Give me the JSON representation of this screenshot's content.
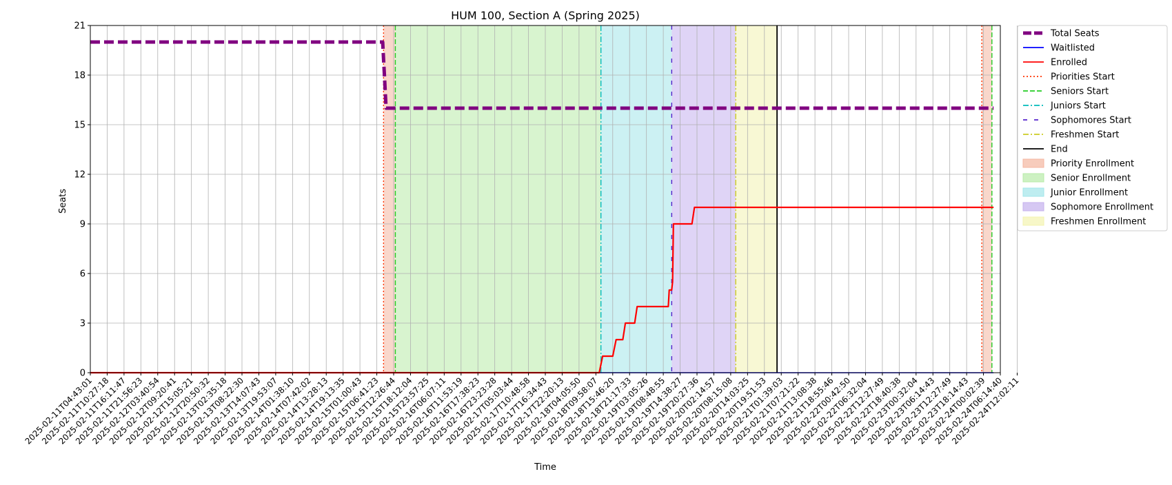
{
  "chart_data": {
    "type": "line",
    "title": "HUM 100, Section A (Spring 2025)",
    "xlabel": "Time",
    "ylabel": "Seats",
    "ylim": [
      0,
      21
    ],
    "y_ticks": [
      0,
      3,
      6,
      9,
      12,
      15,
      18,
      21
    ],
    "grid": true,
    "legend_position": "outside-right",
    "x_tick_labels": [
      "2025-02-11T04:43:01",
      "2025-02-11T10:27:18",
      "2025-02-11T16:11:47",
      "2025-02-11T21:56:23",
      "2025-02-12T03:40:54",
      "2025-02-12T09:20:41",
      "2025-02-12T15:05:21",
      "2025-02-12T20:50:32",
      "2025-02-13T02:35:18",
      "2025-02-13T08:22:30",
      "2025-02-13T14:07:43",
      "2025-02-13T19:53:07",
      "2025-02-14T01:38:10",
      "2025-02-14T07:42:02",
      "2025-02-14T13:28:13",
      "2025-02-14T19:13:35",
      "2025-02-15T01:00:43",
      "2025-02-15T06:41:23",
      "2025-02-15T12:26:44",
      "2025-02-15T18:12:04",
      "2025-02-15T23:57:25",
      "2025-02-16T06:07:11",
      "2025-02-16T11:53:19",
      "2025-02-16T17:38:23",
      "2025-02-16T23:23:28",
      "2025-02-17T05:03:44",
      "2025-02-17T10:48:58",
      "2025-02-17T16:34:43",
      "2025-02-17T22:20:13",
      "2025-02-18T04:05:50",
      "2025-02-18T09:58:07",
      "2025-02-18T15:46:20",
      "2025-02-18T21:17:33",
      "2025-02-19T03:05:26",
      "2025-02-19T08:48:55",
      "2025-02-19T14:38:27",
      "2025-02-19T20:27:36",
      "2025-02-20T02:14:57",
      "2025-02-20T08:15:08",
      "2025-02-20T14:03:25",
      "2025-02-20T19:51:53",
      "2025-02-21T01:39:03",
      "2025-02-21T07:21:22",
      "2025-02-21T13:08:38",
      "2025-02-21T18:55:46",
      "2025-02-22T00:42:50",
      "2025-02-22T06:32:04",
      "2025-02-22T12:27:49",
      "2025-02-22T18:40:38",
      "2025-02-23T00:32:04",
      "2025-02-23T06:14:43",
      "2025-02-23T12:27:49",
      "2025-02-23T18:14:43",
      "2025-02-24T00:02:39",
      "2025-02-24T06:14:40",
      "2025-02-24T12:02:11"
    ],
    "x_domain": [
      0,
      54
    ],
    "series": [
      {
        "name": "Total Seats",
        "color": "#800080",
        "style": "dashed-thick",
        "points": [
          [
            0,
            20
          ],
          [
            17.35,
            20
          ],
          [
            17.4,
            19
          ],
          [
            17.45,
            18
          ],
          [
            17.5,
            17
          ],
          [
            17.55,
            16
          ],
          [
            53.6,
            16
          ]
        ]
      },
      {
        "name": "Waitlisted",
        "color": "#0000ff",
        "style": "solid",
        "points": [
          [
            0,
            0
          ],
          [
            53.6,
            0
          ]
        ]
      },
      {
        "name": "Enrolled",
        "color": "#ff0000",
        "style": "solid",
        "points": [
          [
            0,
            0
          ],
          [
            30.2,
            0
          ],
          [
            30.4,
            1
          ],
          [
            31.0,
            1
          ],
          [
            31.2,
            2
          ],
          [
            31.6,
            2
          ],
          [
            31.75,
            3
          ],
          [
            32.3,
            3
          ],
          [
            32.45,
            4
          ],
          [
            34.3,
            4
          ],
          [
            34.35,
            5
          ],
          [
            34.5,
            5
          ],
          [
            34.55,
            5.5
          ],
          [
            34.6,
            9
          ],
          [
            35.7,
            9
          ],
          [
            35.85,
            10
          ],
          [
            53.6,
            10
          ]
        ]
      }
    ],
    "markers": [
      {
        "name": "Priorities Start",
        "x": 17.4,
        "color": "#ff3300",
        "style": "dotted"
      },
      {
        "name": "Seniors Start",
        "x": 18.1,
        "color": "#22cc22",
        "style": "dashed"
      },
      {
        "name": "Juniors Start",
        "x": 30.3,
        "color": "#00bbbb",
        "style": "dashdot"
      },
      {
        "name": "Sophomores Start",
        "x": 34.5,
        "color": "#5522cc",
        "style": "loosedash"
      },
      {
        "name": "Freshmen Start",
        "x": 38.3,
        "color": "#cccc22",
        "style": "dashdot"
      },
      {
        "name": "End",
        "x": 40.75,
        "color": "#000000",
        "style": "solid"
      },
      {
        "name": "",
        "x": 52.9,
        "color": "#ff3300",
        "style": "dotted"
      },
      {
        "name": "",
        "x": 53.5,
        "color": "#22cc22",
        "style": "dashed"
      }
    ],
    "spans": [
      {
        "name": "Priority Enrollment",
        "start": 17.4,
        "end": 18.1,
        "color": "#f4b6a0"
      },
      {
        "name": "Senior Enrollment",
        "start": 18.1,
        "end": 30.3,
        "color": "#b8eba8"
      },
      {
        "name": "Junior Enrollment",
        "start": 30.3,
        "end": 34.5,
        "color": "#a3e6ea"
      },
      {
        "name": "Sophomore Enrollment",
        "start": 34.5,
        "end": 38.3,
        "color": "#c5b0ee"
      },
      {
        "name": "Freshmen Enrollment",
        "start": 38.3,
        "end": 40.75,
        "color": "#f3f3b0"
      },
      {
        "name": "",
        "start": 52.9,
        "end": 53.5,
        "color": "#f4b6a0"
      }
    ],
    "legend": [
      {
        "label": "Total Seats",
        "kind": "line",
        "color": "#800080",
        "style": "dashed-thick"
      },
      {
        "label": "Waitlisted",
        "kind": "line",
        "color": "#0000ff",
        "style": "solid"
      },
      {
        "label": "Enrolled",
        "kind": "line",
        "color": "#ff0000",
        "style": "solid"
      },
      {
        "label": "Priorities Start",
        "kind": "line",
        "color": "#ff3300",
        "style": "dotted"
      },
      {
        "label": "Seniors Start",
        "kind": "line",
        "color": "#22cc22",
        "style": "dashed"
      },
      {
        "label": "Juniors Start",
        "kind": "line",
        "color": "#00bbbb",
        "style": "dashdot"
      },
      {
        "label": "Sophomores Start",
        "kind": "line",
        "color": "#5522cc",
        "style": "loosedash"
      },
      {
        "label": "Freshmen Start",
        "kind": "line",
        "color": "#cccc22",
        "style": "dashdot"
      },
      {
        "label": "End",
        "kind": "line",
        "color": "#000000",
        "style": "solid"
      },
      {
        "label": "Priority Enrollment",
        "kind": "patch",
        "color": "#f4b6a0"
      },
      {
        "label": "Senior Enrollment",
        "kind": "patch",
        "color": "#b8eba8"
      },
      {
        "label": "Junior Enrollment",
        "kind": "patch",
        "color": "#a3e6ea"
      },
      {
        "label": "Sophomore Enrollment",
        "kind": "patch",
        "color": "#c5b0ee"
      },
      {
        "label": "Freshmen Enrollment",
        "kind": "patch",
        "color": "#f3f3b0"
      }
    ]
  }
}
